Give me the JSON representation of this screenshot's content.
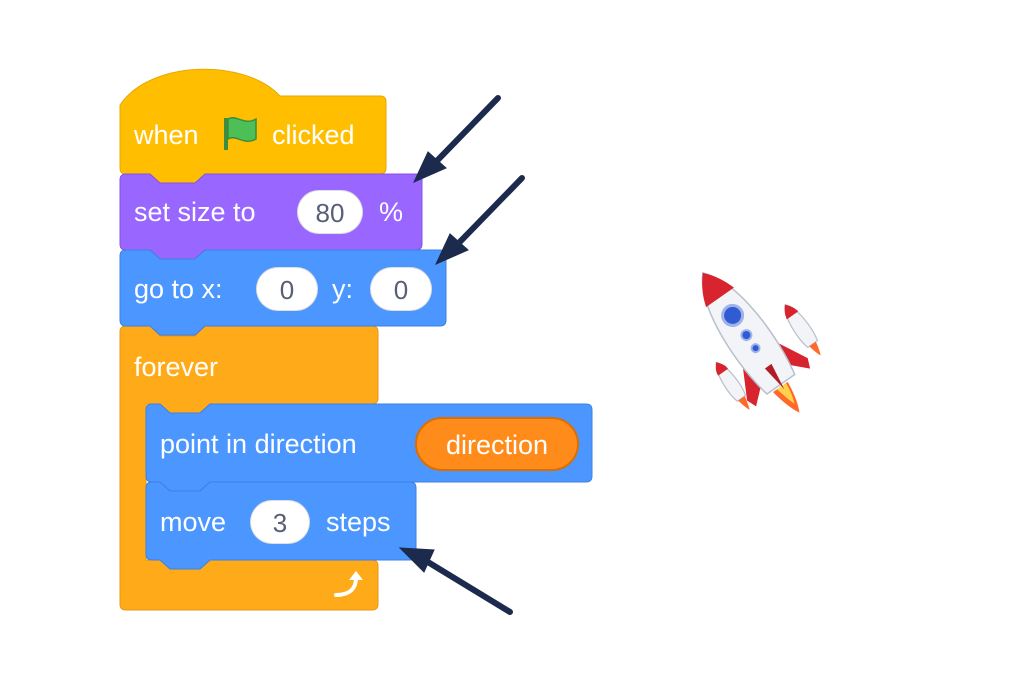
{
  "blocks": {
    "hat": {
      "when_label": "when",
      "clicked_label": "clicked",
      "flag_icon": "green-flag-icon",
      "color": "#FFBF00"
    },
    "set_size": {
      "label": "set size to",
      "value": "80",
      "unit": "%",
      "color": "#9966FF"
    },
    "go_to": {
      "label": "go to x:",
      "x_value": "0",
      "y_label": "y:",
      "y_value": "0",
      "color": "#4C97FF"
    },
    "forever": {
      "label": "forever",
      "repeat_icon": "repeat-arrow-icon",
      "color": "#FFAB19"
    },
    "point_in_direction": {
      "label": "point in direction",
      "reporter": "direction",
      "reporter_color": "#FF8C1A",
      "color": "#4C97FF"
    },
    "move": {
      "label": "move",
      "value": "3",
      "unit": "steps",
      "color": "#4C97FF"
    }
  },
  "annotations": {
    "arrow_color": "#1C2A4D",
    "arrow_icon": "annotation-arrow-icon"
  },
  "sprite": {
    "icon": "rocket-icon"
  }
}
